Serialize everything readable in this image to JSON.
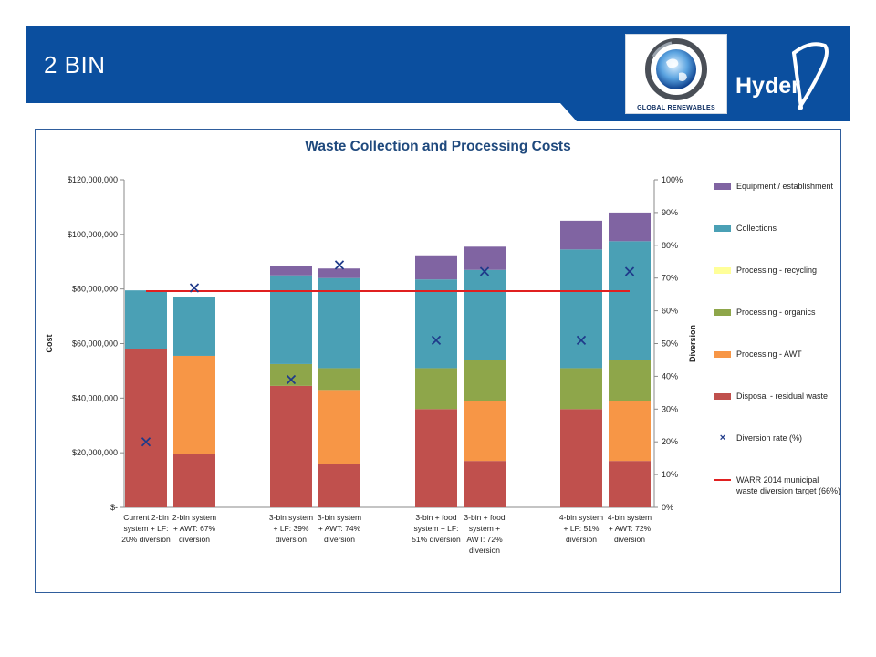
{
  "slide": {
    "title": "2 BIN",
    "banner_color": "#0b4f9f",
    "logos": {
      "global_renewables": "GLOBAL RENEWABLES",
      "hyder": "Hyder"
    }
  },
  "chart_data": {
    "type": "bar",
    "stacked": true,
    "title": "Waste Collection and Processing Costs",
    "ylabel": "Cost",
    "y2label": "Diversion",
    "ylim": [
      0,
      120000000
    ],
    "y2lim": [
      0,
      100
    ],
    "yticks": [
      "$-",
      "$20,000,000",
      "$40,000,000",
      "$60,000,000",
      "$80,000,000",
      "$100,000,000",
      "$120,000,000"
    ],
    "y2ticks": [
      "0%",
      "10%",
      "20%",
      "30%",
      "40%",
      "50%",
      "60%",
      "70%",
      "80%",
      "90%",
      "100%"
    ],
    "grid": false,
    "legend_position": "right",
    "categories": [
      [
        "Current 2-bin",
        "system + LF:",
        "20% diversion"
      ],
      [
        "2-bin system",
        "+ AWT: 67%",
        "diversion"
      ],
      [
        "3-bin system",
        "+ LF: 39%",
        "diversion"
      ],
      [
        "3-bin system",
        "+ AWT: 74%",
        "diversion"
      ],
      [
        "3-bin + food",
        "system + LF:",
        "51% diversion"
      ],
      [
        "3-bin + food",
        "system +",
        "AWT: 72%",
        "diversion"
      ],
      [
        "4-bin system",
        "+ LF: 51%",
        "diversion"
      ],
      [
        "4-bin system",
        "+ AWT: 72%",
        "diversion"
      ]
    ],
    "groups": [
      [
        0,
        1
      ],
      [
        2,
        3
      ],
      [
        4,
        5
      ],
      [
        6,
        7
      ]
    ],
    "series": [
      {
        "name": "Disposal - residual waste",
        "color": "#c0504d",
        "values": [
          58000000,
          19500000,
          44500000,
          16000000,
          36000000,
          17000000,
          36000000,
          17000000
        ]
      },
      {
        "name": "Processing - AWT",
        "color": "#f79646",
        "values": [
          0,
          36000000,
          0,
          27000000,
          0,
          22000000,
          0,
          22000000
        ]
      },
      {
        "name": "Processing - organics",
        "color": "#8ea64a",
        "values": [
          0,
          0,
          8000000,
          8000000,
          15000000,
          15000000,
          15000000,
          15000000
        ]
      },
      {
        "name": "Processing - recycling",
        "color": "#ffff99",
        "values": [
          0,
          0,
          0,
          0,
          0,
          0,
          0,
          0
        ]
      },
      {
        "name": "Collections",
        "color": "#4aa0b5",
        "values": [
          21500000,
          21500000,
          32500000,
          33000000,
          32500000,
          33000000,
          43500000,
          43500000
        ]
      },
      {
        "name": "Equipment / establishment",
        "color": "#8064a2",
        "values": [
          0,
          0,
          3500000,
          3500000,
          8500000,
          8500000,
          10500000,
          10500000
        ]
      }
    ],
    "markers": {
      "name": "Diversion rate (%)",
      "color": "#1f3a8a",
      "values": [
        20,
        67,
        39,
        74,
        51,
        72,
        51,
        72
      ]
    },
    "target_line": {
      "name": "WARR 2014 municipal waste diversion target (66%)",
      "color": "#e02020",
      "value": 66
    }
  }
}
